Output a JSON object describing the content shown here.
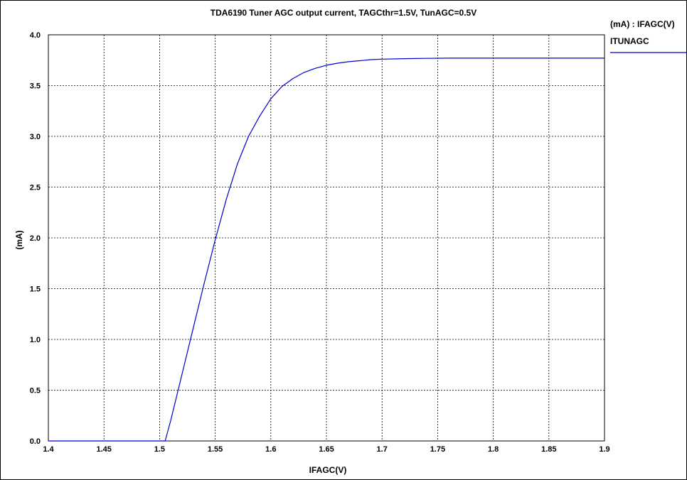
{
  "chart_data": {
    "type": "line",
    "title": "TDA6190 Tuner AGC output current, TAGCthr=1.5V, TunAGC=0.5V",
    "xlabel": "IFAGC(V)",
    "ylabel": "(mA)",
    "xlim": [
      1.4,
      1.9
    ],
    "ylim": [
      0.0,
      4.0
    ],
    "x_ticks": [
      "1.4",
      "1.45",
      "1.5",
      "1.55",
      "1.6",
      "1.65",
      "1.7",
      "1.75",
      "1.8",
      "1.85",
      "1.9"
    ],
    "y_ticks": [
      "0.0",
      "0.5",
      "1.0",
      "1.5",
      "2.0",
      "2.5",
      "3.0",
      "3.5",
      "4.0"
    ],
    "grid": true,
    "legend": {
      "header": "(mA) : IFAGC(V)",
      "position": "top-right"
    },
    "series": [
      {
        "name": "ITUNAGC",
        "color": "#0000cc",
        "x": [
          1.4,
          1.45,
          1.5,
          1.505,
          1.51,
          1.52,
          1.53,
          1.54,
          1.55,
          1.56,
          1.57,
          1.58,
          1.59,
          1.6,
          1.61,
          1.62,
          1.63,
          1.64,
          1.65,
          1.66,
          1.67,
          1.68,
          1.69,
          1.7,
          1.72,
          1.74,
          1.76,
          1.78,
          1.8,
          1.85,
          1.9
        ],
        "y": [
          0.0,
          0.0,
          0.0,
          0.0,
          0.2,
          0.65,
          1.1,
          1.55,
          1.98,
          2.38,
          2.73,
          3.0,
          3.2,
          3.37,
          3.49,
          3.57,
          3.63,
          3.67,
          3.7,
          3.72,
          3.735,
          3.745,
          3.755,
          3.76,
          3.765,
          3.768,
          3.77,
          3.77,
          3.77,
          3.77,
          3.77
        ]
      }
    ]
  }
}
